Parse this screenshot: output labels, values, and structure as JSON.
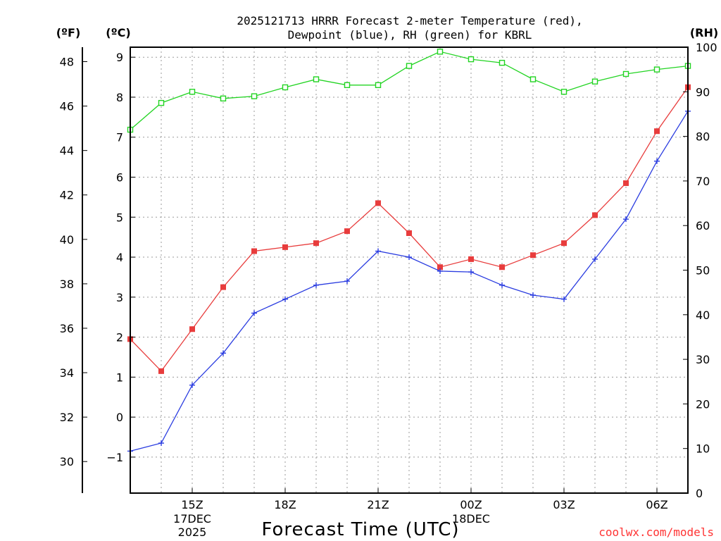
{
  "chart_data": {
    "type": "line",
    "title_line1": "2025121713 HRRR Forecast 2-meter Temperature (red),",
    "title_line2": "Dewpoint (blue), RH (green) for KBRL",
    "xlabel": "Forecast Time (UTC)",
    "credit": "coolwx.com/models",
    "left_unit_f": "(ºF)",
    "left_unit_c": "(ºC)",
    "right_unit": "(RH)",
    "x": [
      13,
      14,
      15,
      16,
      17,
      18,
      19,
      20,
      21,
      22,
      23,
      24,
      25,
      26,
      27,
      28,
      29,
      30,
      31
    ],
    "xlim": [
      13,
      31
    ],
    "x_ticks": [
      {
        "hour": 15,
        "label": "15Z",
        "date1": "17DEC",
        "date2": "2025"
      },
      {
        "hour": 18,
        "label": "18Z",
        "date1": "",
        "date2": ""
      },
      {
        "hour": 21,
        "label": "21Z",
        "date1": "",
        "date2": ""
      },
      {
        "hour": 24,
        "label": "00Z",
        "date1": "18DEC",
        "date2": ""
      },
      {
        "hour": 27,
        "label": "03Z",
        "date1": "",
        "date2": ""
      },
      {
        "hour": 30,
        "label": "06Z",
        "date1": "",
        "date2": ""
      }
    ],
    "celsius_ylim": [
      -1.9,
      9.25
    ],
    "celsius_ticks": [
      -1,
      0,
      1,
      2,
      3,
      4,
      5,
      6,
      7,
      8,
      9
    ],
    "fahrenheit_ticks": [
      30,
      32,
      34,
      36,
      38,
      40,
      42,
      44,
      46,
      48
    ],
    "rh_ylim": [
      0,
      100
    ],
    "rh_ticks": [
      0,
      10,
      20,
      30,
      40,
      50,
      60,
      70,
      80,
      90,
      100
    ],
    "colors": {
      "temperature": "#e83c3c",
      "dewpoint": "#2a3ce0",
      "rh": "#22d422",
      "grid": "#9a9a9a",
      "axis": "#000000",
      "credit": "#ff3333"
    },
    "series": [
      {
        "name": "Temperature",
        "unit": "C",
        "marker": "filled-square",
        "values": [
          1.95,
          1.15,
          2.2,
          3.25,
          4.15,
          4.25,
          4.35,
          4.65,
          5.35,
          4.6,
          3.75,
          3.95,
          3.75,
          4.05,
          4.35,
          5.05,
          5.85,
          7.15,
          8.25
        ]
      },
      {
        "name": "Dewpoint",
        "unit": "C",
        "marker": "plus",
        "values": [
          -0.85,
          -0.65,
          0.8,
          1.6,
          2.6,
          2.95,
          3.3,
          3.4,
          4.15,
          4.0,
          3.65,
          3.63,
          3.3,
          3.05,
          2.95,
          3.95,
          4.95,
          6.4,
          7.65
        ]
      },
      {
        "name": "RH",
        "unit": "%",
        "marker": "open-square",
        "values": [
          81.5,
          87.5,
          90.0,
          88.5,
          89.0,
          91.0,
          92.8,
          91.5,
          91.5,
          95.8,
          99.0,
          97.3,
          96.5,
          92.8,
          90.0,
          92.3,
          94.0,
          95.0,
          95.8
        ]
      }
    ]
  }
}
